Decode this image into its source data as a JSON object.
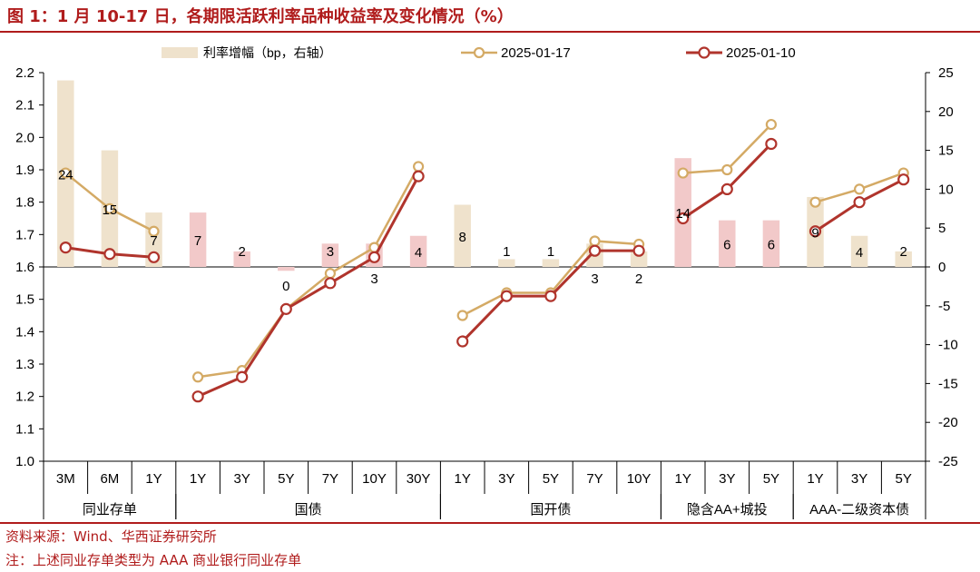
{
  "figure": {
    "title": "图 1：1 月 10-17 日，各期限活跃利率品种收益率及变化情况（%）",
    "source": "资料来源：Wind、华西证券研究所",
    "footnote": "注：上述同业存单类型为 AAA 商业银行同业存单"
  },
  "colors": {
    "bar_default": "#efe2cc",
    "bar_highlight": "#f2c9c9",
    "series_0117": "#d4aa65",
    "series_0110": "#b0342c",
    "accent": "#b01c1c"
  },
  "chart_data": {
    "type": "bar+line",
    "categories": [
      "3M",
      "6M",
      "1Y",
      "1Y",
      "3Y",
      "5Y",
      "7Y",
      "10Y",
      "30Y",
      "1Y",
      "3Y",
      "5Y",
      "7Y",
      "10Y",
      "1Y",
      "3Y",
      "5Y",
      "1Y",
      "3Y",
      "5Y"
    ],
    "groups": [
      {
        "name": "同业存单",
        "count": 3
      },
      {
        "name": "国债",
        "count": 6
      },
      {
        "name": "国开债",
        "count": 5
      },
      {
        "name": "隐含AA+城投",
        "count": 3
      },
      {
        "name": "AAA-二级资本债",
        "count": 3
      }
    ],
    "series": [
      {
        "name": "利率增幅（bp，右轴）",
        "type": "bar",
        "axis": "right",
        "values": [
          24,
          15,
          7,
          7,
          2,
          -0.5,
          3,
          3,
          4,
          8,
          1,
          1,
          3,
          2,
          14,
          6,
          6,
          9,
          4,
          2
        ],
        "labels": [
          "24",
          "15",
          "7",
          "7",
          "2",
          "0",
          "3",
          "3",
          "4",
          "8",
          "1",
          "1",
          "3",
          "2",
          "14",
          "6",
          "6",
          "9",
          "4",
          "2"
        ],
        "highlight": [
          false,
          false,
          false,
          true,
          true,
          true,
          true,
          true,
          true,
          false,
          false,
          false,
          false,
          false,
          true,
          true,
          true,
          false,
          false,
          false
        ]
      },
      {
        "name": "2025-01-17",
        "type": "line",
        "axis": "left",
        "values": [
          1.89,
          1.78,
          1.71,
          1.26,
          1.28,
          1.47,
          1.58,
          1.66,
          1.91,
          1.45,
          1.52,
          1.52,
          1.68,
          1.67,
          1.89,
          1.9,
          2.04,
          1.8,
          1.84,
          1.89
        ]
      },
      {
        "name": "2025-01-10",
        "type": "line",
        "axis": "left",
        "values": [
          1.66,
          1.64,
          1.63,
          1.2,
          1.26,
          1.47,
          1.55,
          1.63,
          1.88,
          1.37,
          1.51,
          1.51,
          1.65,
          1.65,
          1.75,
          1.84,
          1.98,
          1.71,
          1.8,
          1.87
        ]
      }
    ],
    "left_axis": {
      "min": 1.0,
      "max": 2.2,
      "step": 0.1
    },
    "right_axis": {
      "min": -25,
      "max": 25,
      "step": 5
    },
    "legend_position": "top",
    "grid": false
  }
}
